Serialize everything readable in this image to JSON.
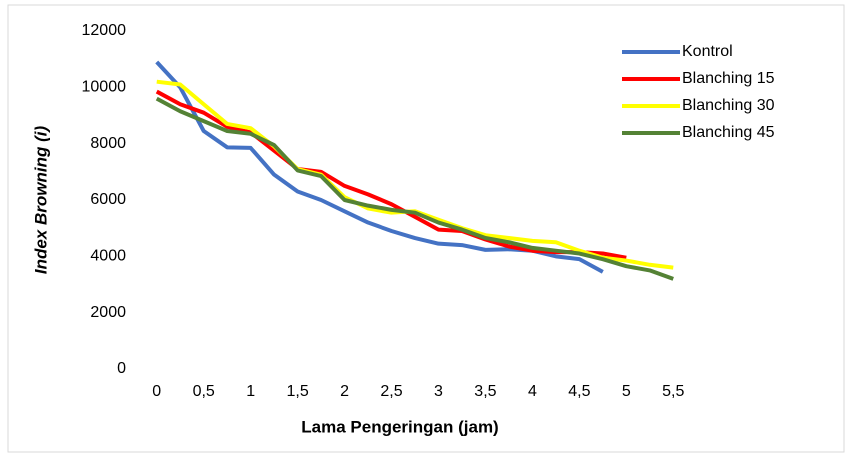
{
  "chart_data": {
    "type": "line",
    "x_label": "Lama Pengeringan (jam)",
    "y_label": "Index Browning (i)",
    "categories": [
      "0",
      null,
      "0,5",
      null,
      "1",
      null,
      "1,5",
      null,
      "2",
      null,
      "2,5",
      null,
      "3",
      null,
      "3,5",
      null,
      "4",
      null,
      "4,5",
      null,
      "5",
      null,
      "5,5"
    ],
    "series": [
      {
        "name": "Kontrol",
        "color": "#4472c4",
        "values": [
          10900,
          10000,
          8450,
          7870,
          7850,
          6900,
          6300,
          6000,
          5600,
          5200,
          4900,
          4650,
          4450,
          4400,
          4230,
          4250,
          4200,
          4000,
          3900,
          3450,
          null,
          null,
          null
        ]
      },
      {
        "name": "Blanching 15",
        "color": "#ff0000",
        "values": [
          9850,
          9400,
          9100,
          8600,
          8400,
          7750,
          7100,
          7000,
          6500,
          6200,
          5850,
          5400,
          4950,
          4900,
          4600,
          4350,
          4200,
          4150,
          4150,
          4100,
          3950,
          null,
          null
        ]
      },
      {
        "name": "Blanching 30",
        "color": "#ffff00",
        "values": [
          10200,
          10100,
          9400,
          8700,
          8550,
          7900,
          7100,
          6900,
          6100,
          5700,
          5550,
          5600,
          5300,
          5000,
          4750,
          4650,
          4550,
          4500,
          4200,
          3950,
          3850,
          3700,
          3600
        ]
      },
      {
        "name": "Blanching 45",
        "color": "#548235",
        "values": [
          9600,
          9150,
          8800,
          8450,
          8350,
          7950,
          7050,
          6850,
          6000,
          5800,
          5650,
          5550,
          5200,
          4950,
          4650,
          4500,
          4300,
          4200,
          4100,
          3900,
          3650,
          3500,
          3200
        ]
      }
    ],
    "ylim": [
      0,
      12000
    ],
    "yticks": [
      0,
      2000,
      4000,
      6000,
      8000,
      10000,
      12000
    ],
    "grid": false,
    "legend": "top-right"
  }
}
